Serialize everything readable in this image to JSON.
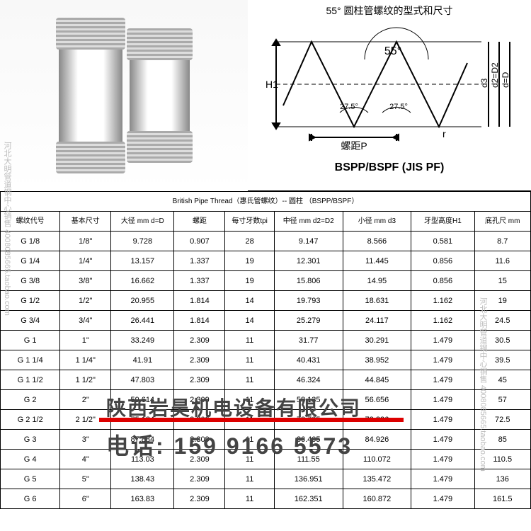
{
  "diagram": {
    "title": "55° 圆柱管螺纹的型式和尺寸",
    "bottom_label": "BSPP/BSPF (JIS PF)",
    "angle_main": "55°",
    "angle_half1": "27.5°",
    "angle_half2": "27.5°",
    "h1": "H1",
    "pitch": "螺距P",
    "r": "r",
    "d3": "d3",
    "d2": "d2=D2",
    "d": "d=D",
    "stroke": "#000000",
    "bg": "#ffffff"
  },
  "overlay": {
    "company": "陕西岩昊机电设备有限公司",
    "phone_label": "电话:",
    "phone": "159 9166 5573",
    "side_text": "河北大明管道钢中心销售 4008085665.taobao.com",
    "red": "#d00000"
  },
  "table": {
    "title_row": "British Pipe Thread（惠氏管螺纹）-- 圆柱 （BSPP/BSPF）",
    "headers": [
      "螺纹代号",
      "基本尺寸",
      "大径 mm d=D",
      "螺距",
      "每寸牙数tpi",
      "中径 mm d2=D2",
      "小径 mm d3",
      "牙型高度H1",
      "底孔尺 mm"
    ],
    "rows": [
      [
        "G 1/8",
        "1/8\"",
        "9.728",
        "0.907",
        "28",
        "9.147",
        "8.566",
        "0.581",
        "8.7"
      ],
      [
        "G 1/4",
        "1/4\"",
        "13.157",
        "1.337",
        "19",
        "12.301",
        "11.445",
        "0.856",
        "11.6"
      ],
      [
        "G 3/8",
        "3/8\"",
        "16.662",
        "1.337",
        "19",
        "15.806",
        "14.95",
        "0.856",
        "15"
      ],
      [
        "G 1/2",
        "1/2\"",
        "20.955",
        "1.814",
        "14",
        "19.793",
        "18.631",
        "1.162",
        "19"
      ],
      [
        "G 3/4",
        "3/4\"",
        "26.441",
        "1.814",
        "14",
        "25.279",
        "24.117",
        "1.162",
        "24.5"
      ],
      [
        "G 1",
        "1\"",
        "33.249",
        "2.309",
        "11",
        "31.77",
        "30.291",
        "1.479",
        "30.5"
      ],
      [
        "G 1 1/4",
        "1 1/4\"",
        "41.91",
        "2.309",
        "11",
        "40.431",
        "38.952",
        "1.479",
        "39.5"
      ],
      [
        "G 1 1/2",
        "1 1/2\"",
        "47.803",
        "2.309",
        "11",
        "46.324",
        "44.845",
        "1.479",
        "45"
      ],
      [
        "G 2",
        "2\"",
        "59.614",
        "2.309",
        "11",
        "58.135",
        "56.656",
        "1.479",
        "57"
      ],
      [
        "G 2 1/2",
        "2 1/2\"",
        "75.184",
        "2.309",
        "11",
        "73.705",
        "72.226",
        "1.479",
        "72.5"
      ],
      [
        "G 3",
        "3\"",
        "87.884",
        "2.309",
        "11",
        "86.405",
        "84.926",
        "1.479",
        "85"
      ],
      [
        "G 4",
        "4\"",
        "113.03",
        "2.309",
        "11",
        "111.55",
        "110.072",
        "1.479",
        "110.5"
      ],
      [
        "G 5",
        "5\"",
        "138.43",
        "2.309",
        "11",
        "136.951",
        "135.472",
        "1.479",
        "136"
      ],
      [
        "G 6",
        "6\"",
        "163.83",
        "2.309",
        "11",
        "162.351",
        "160.872",
        "1.479",
        "161.5"
      ]
    ],
    "col_widths": [
      "68px",
      "58px",
      "72px",
      "58px",
      "56px",
      "78px",
      "78px",
      "72px",
      "64px"
    ]
  }
}
